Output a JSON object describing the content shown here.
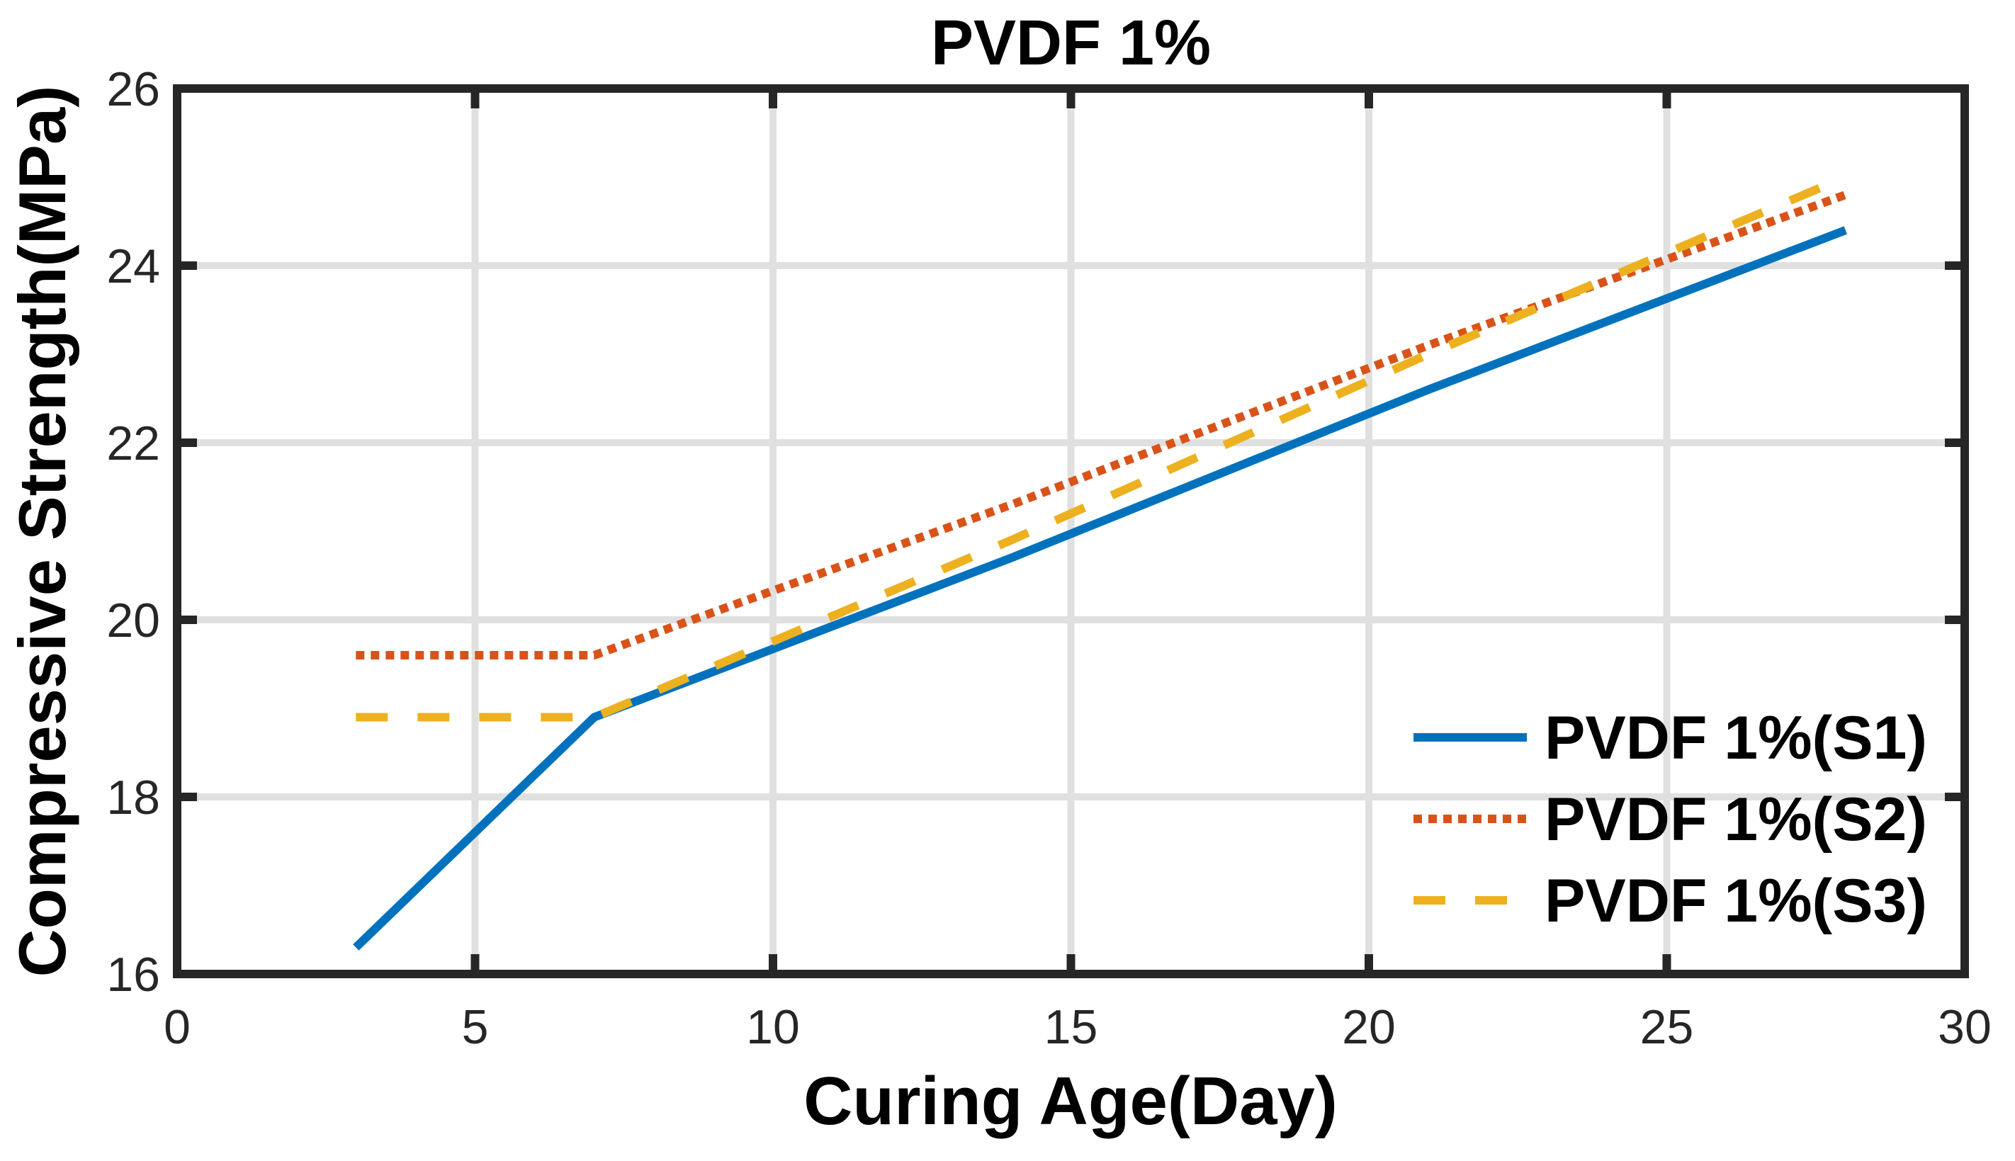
{
  "figure": {
    "title": "PVDF 1%",
    "x_label": "Curing Age(Day)",
    "y_label": "Compressive Strength(MPa)"
  },
  "chart_data": {
    "type": "line",
    "title": "PVDF 1%",
    "xlabel": "Curing Age(Day)",
    "ylabel": "Compressive Strength(MPa)",
    "x": [
      3,
      7,
      14,
      21,
      28
    ],
    "series": [
      {
        "name": "PVDF 1%(S1)",
        "values": [
          16.3,
          18.9,
          20.7,
          22.6,
          24.4
        ],
        "color": "#0072BD",
        "style": "solid"
      },
      {
        "name": "PVDF 1%(S2)",
        "values": [
          19.6,
          19.6,
          21.3,
          23.1,
          24.8
        ],
        "color": "#D95319",
        "style": "dotted"
      },
      {
        "name": "PVDF 1%(S3)",
        "values": [
          18.9,
          18.9,
          20.9,
          23.0,
          25.0
        ],
        "color": "#EDB120",
        "style": "dashed"
      }
    ],
    "xlim": [
      0,
      30
    ],
    "ylim": [
      16,
      26
    ],
    "xticks": [
      "0",
      "5",
      "10",
      "15",
      "20",
      "25",
      "30"
    ],
    "yticks": [
      "16",
      "18",
      "20",
      "22",
      "24",
      "26"
    ],
    "grid": true,
    "legend_position": "lower-right-inside",
    "legend_border": "none",
    "colors": {
      "grid": "#E0E0E0",
      "axis": "#262626",
      "tick_label": "#262626",
      "background": "#FFFFFF"
    }
  }
}
